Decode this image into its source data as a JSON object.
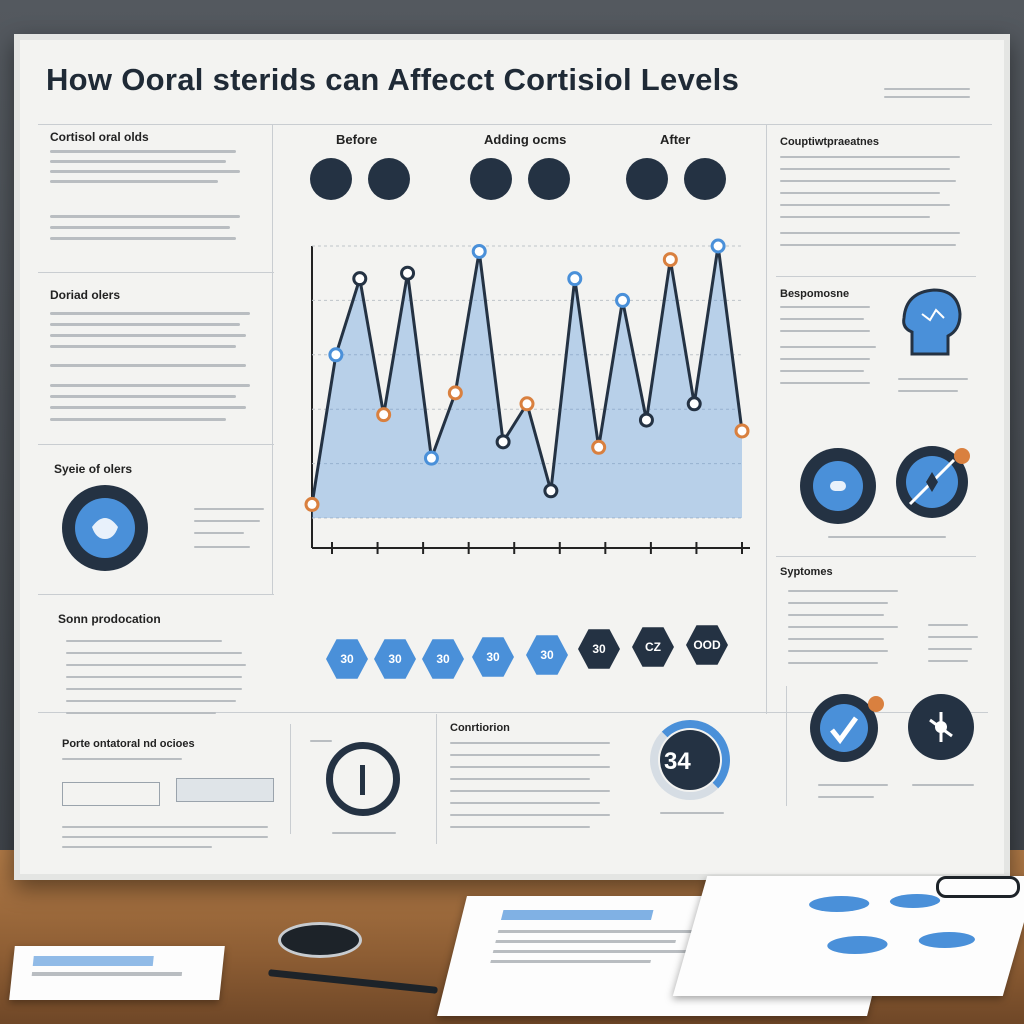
{
  "title": "How Ooral sterids can Affecct Cortisiol Levels",
  "sections": {
    "left_top": "Cortisol oral olds",
    "left_mid": "Doriad olers",
    "left_cycle": "Syeie of olers",
    "left_bottom": "Sonn prodocation",
    "left_footer": "Porte ontatoral nd ocioes",
    "right_top": "Couptiwtpraeatnes",
    "right_mid": "Bespomosne",
    "right_sympt": "Syptomes",
    "conclusion": "Conrtiorion"
  },
  "phases": [
    "Before",
    "Adding ocms",
    "After"
  ],
  "gauge_value": "34",
  "hex_labels": [
    "30",
    "30",
    "30",
    "30",
    "30",
    "30",
    "CZ",
    "OOD"
  ],
  "colors": {
    "accent": "#4a90d9",
    "dark": "#243243",
    "orange": "#d9803f"
  },
  "chart_data": {
    "type": "line",
    "series": [
      {
        "values": [
          5,
          60,
          88,
          38,
          90,
          22,
          46,
          98,
          28,
          42,
          10,
          88,
          26,
          80,
          36,
          95,
          42,
          100,
          32
        ]
      }
    ]
  }
}
